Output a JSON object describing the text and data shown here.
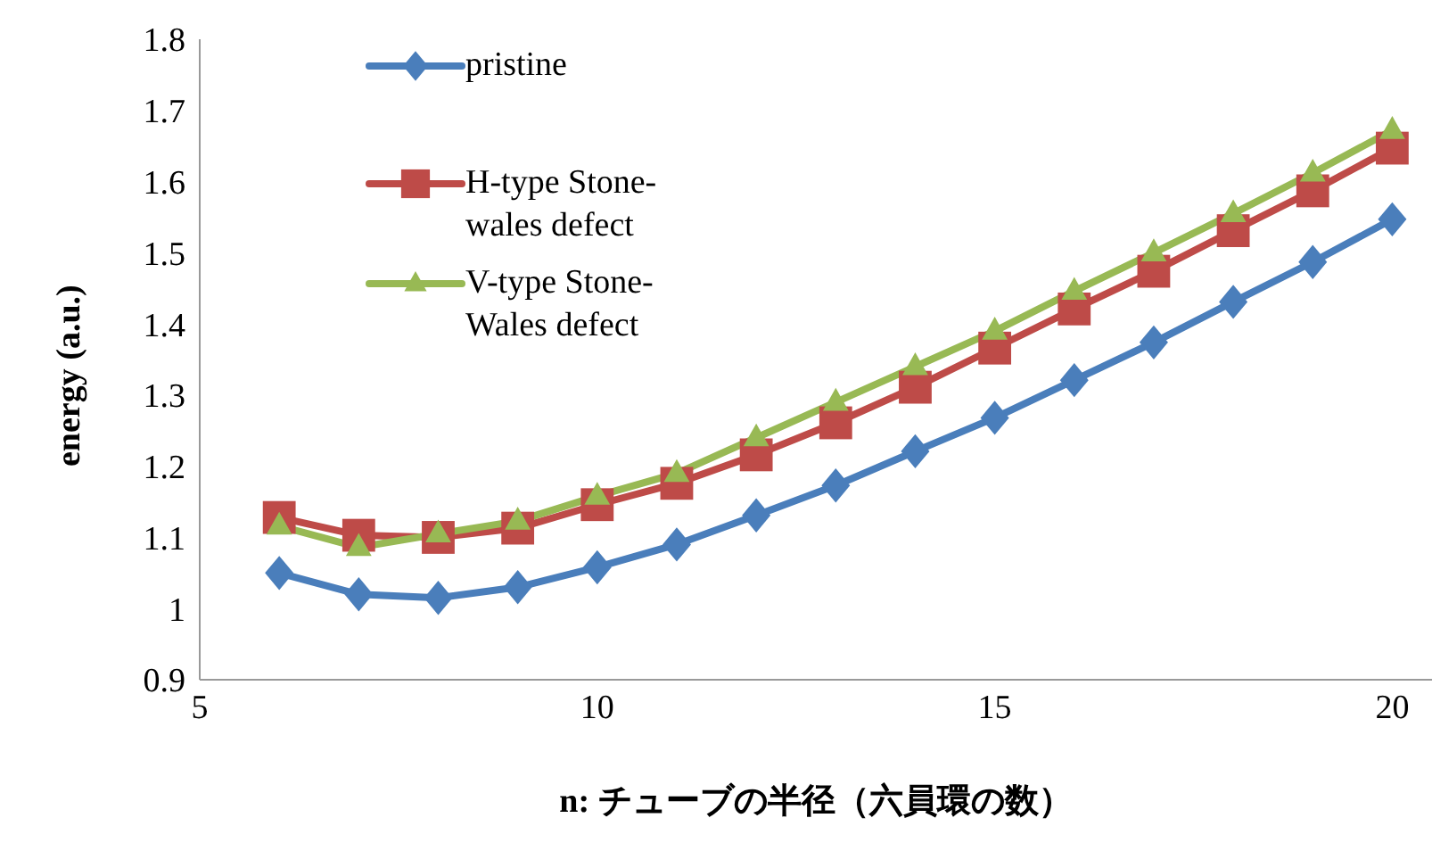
{
  "chart_data": {
    "type": "line",
    "xlabel": "n: チューブの半径（六員環の数）",
    "ylabel": "energy (a.u.)",
    "x": [
      6,
      7,
      8,
      9,
      10,
      11,
      12,
      13,
      14,
      15,
      16,
      17,
      18,
      19,
      20
    ],
    "series": [
      {
        "name": "pristine",
        "color": "#4a7ebb",
        "marker": "diamond",
        "values": [
          1.05,
          1.02,
          1.015,
          1.03,
          1.058,
          1.09,
          1.131,
          1.173,
          1.221,
          1.268,
          1.321,
          1.374,
          1.431,
          1.487,
          1.547
        ]
      },
      {
        "name": "H-type Stone-wales defect",
        "color": "#be4b48",
        "marker": "square",
        "values": [
          1.128,
          1.103,
          1.1,
          1.113,
          1.146,
          1.176,
          1.216,
          1.261,
          1.311,
          1.366,
          1.421,
          1.474,
          1.531,
          1.587,
          1.647
        ]
      },
      {
        "name": "V-type Stone-Wales defect",
        "color": "#98b954",
        "marker": "triangle",
        "values": [
          1.116,
          1.086,
          1.105,
          1.123,
          1.158,
          1.19,
          1.24,
          1.29,
          1.34,
          1.39,
          1.446,
          1.5,
          1.555,
          1.612,
          1.672
        ]
      }
    ],
    "xlim": [
      5,
      20.5
    ],
    "xticks": [
      5,
      10,
      15,
      20
    ],
    "ylim": [
      0.9,
      1.8
    ],
    "yticks": [
      0.9,
      1,
      1.1,
      1.2,
      1.3,
      1.4,
      1.5,
      1.6,
      1.7,
      1.8
    ],
    "grid": false,
    "legend": "top left"
  }
}
